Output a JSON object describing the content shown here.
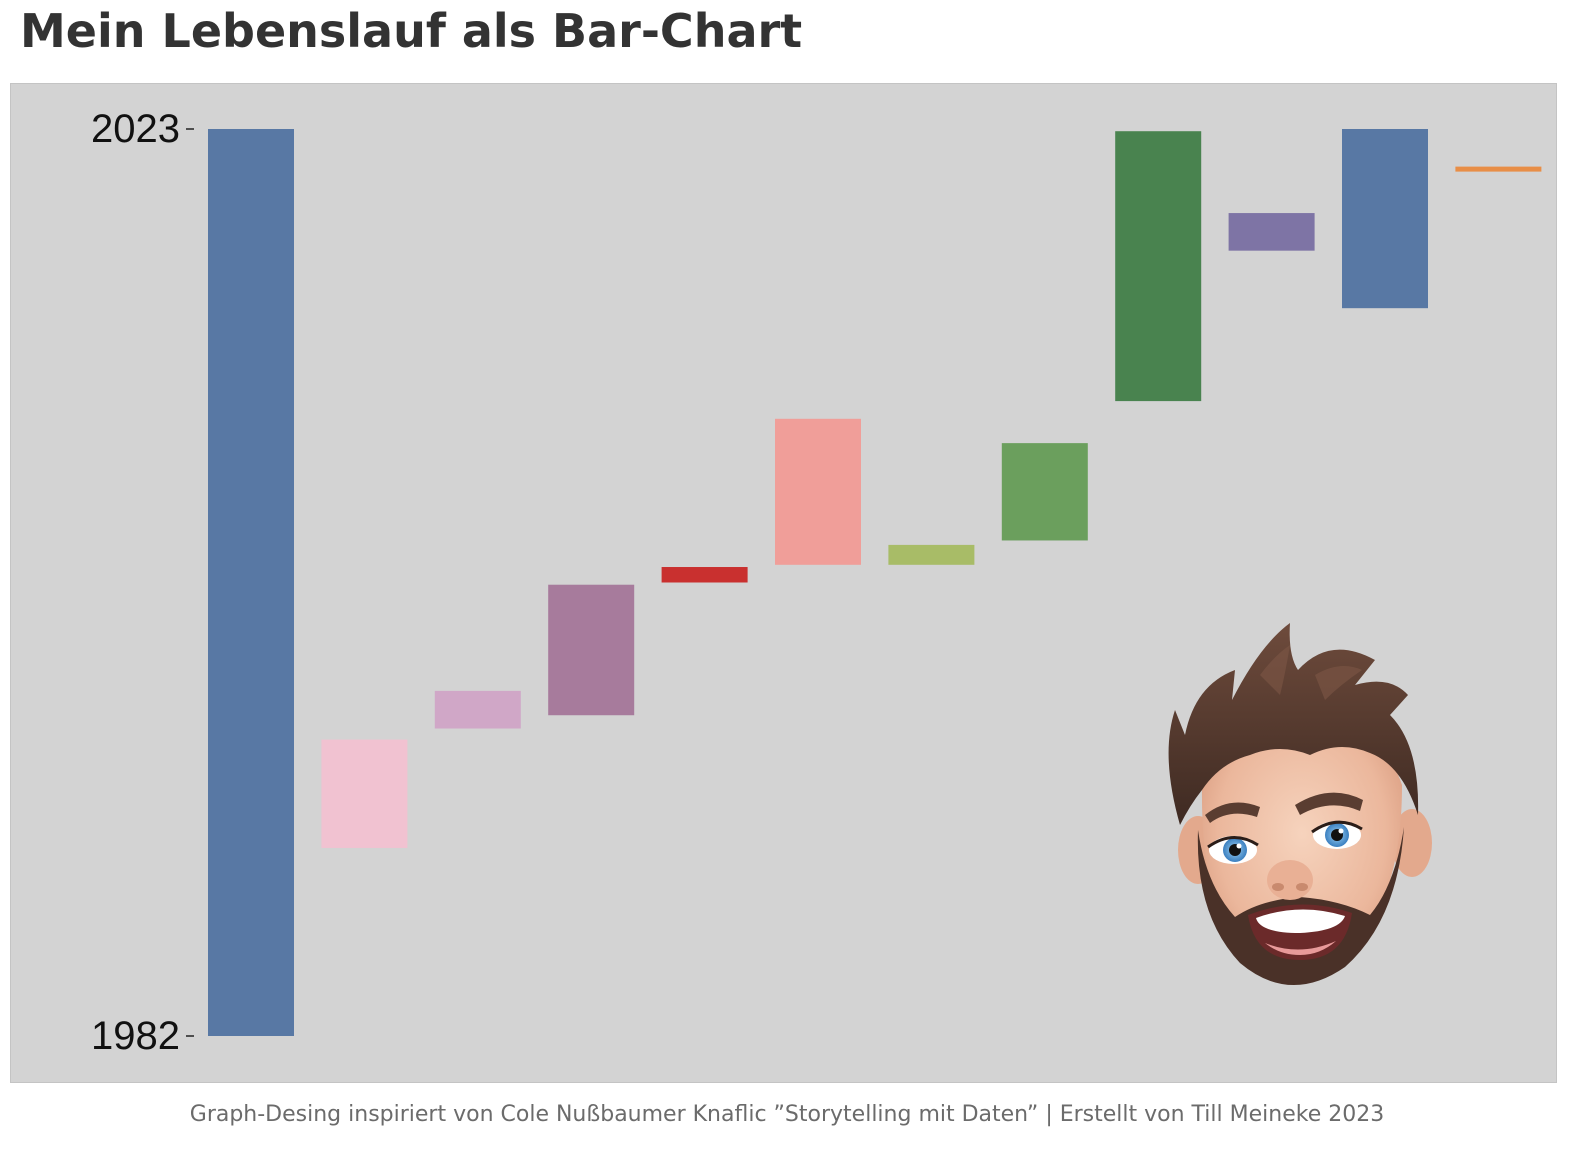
{
  "title": "Mein Lebenslauf als Bar-Chart",
  "footer": "Graph-Desing inspiriert von Cole Nußbaumer Knaflic ”Storytelling mit Daten” | Erstellt von Till Meineke 2023",
  "avatar_icon": "memoji-avatar-icon",
  "chart_data": {
    "type": "bar",
    "ylim": [
      1982,
      2023
    ],
    "y_ticks": [
      "2023",
      "1982"
    ],
    "grid": false,
    "series": [
      {
        "start": 1982.0,
        "end": 2023.0,
        "color": "#5878a4"
      },
      {
        "start": 1990.5,
        "end": 1995.4,
        "color": "#f1c2d1"
      },
      {
        "start": 1995.9,
        "end": 1997.6,
        "color": "#d0a7c7"
      },
      {
        "start": 1996.5,
        "end": 2002.4,
        "color": "#a77b9c"
      },
      {
        "start": 2002.5,
        "end": 2003.2,
        "color": "#c9302f"
      },
      {
        "start": 2003.3,
        "end": 2009.9,
        "color": "#f09e99"
      },
      {
        "start": 2003.3,
        "end": 2004.2,
        "color": "#a8bc67"
      },
      {
        "start": 2004.4,
        "end": 2008.8,
        "color": "#6b9f5d"
      },
      {
        "start": 2010.7,
        "end": 2022.9,
        "color": "#49834f"
      },
      {
        "start": 2017.5,
        "end": 2019.2,
        "color": "#7e74a5"
      },
      {
        "start": 2014.9,
        "end": 2023.0,
        "color": "#5878a4"
      },
      {
        "start": 2021.1,
        "end": 2021.3,
        "color": "#e88e47"
      }
    ]
  }
}
